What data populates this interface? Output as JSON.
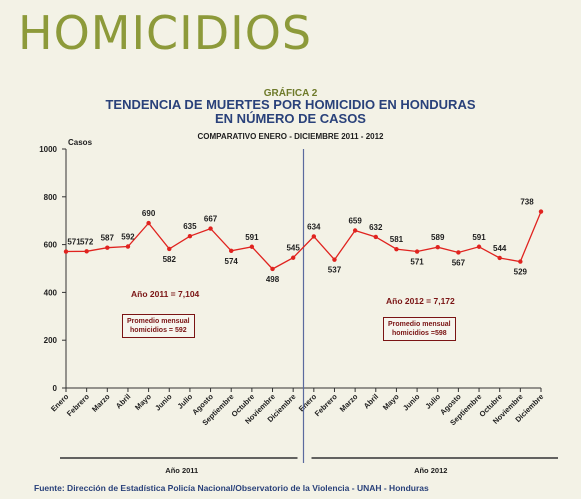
{
  "page": {
    "heading": "HOMICIDIOS",
    "chart_number": "GRÁFICA 2",
    "chart_title_line1": "TENDENCIA DE MUERTES POR HOMICIDIO EN HONDURAS",
    "chart_title_line2": "EN NÚMERO DE CASOS",
    "chart_subtitle": "COMPARATIVO ENERO - DICIEMBRE 2011 - 2012",
    "source": "Fuente: Dirección de Estadística Policía Nacional/Observatorio de la Violencia - UNAH - Honduras"
  },
  "annotations": {
    "total_2011": "Año 2011 = 7,104",
    "total_2012": "Año 2012 = 7,172",
    "avg_2011_line1": "Promedio mensual",
    "avg_2011_line2": "homicidios = 592",
    "avg_2012_line1": "Promedio mensual",
    "avg_2012_line2": "homicidios =598"
  },
  "colors": {
    "line": "#e0231f",
    "heading": "#8d9a3a",
    "title": "#29417a",
    "annotation": "#7a1414",
    "divider": "#5a6a9e"
  },
  "chart_data": {
    "type": "line",
    "ylabel": "Casos",
    "ylim": [
      0,
      1000
    ],
    "yticks": [
      0,
      200,
      400,
      600,
      800,
      1000
    ],
    "categories": [
      "Enero",
      "Febrero",
      "Marzo",
      "Abril",
      "Mayo",
      "Junio",
      "Julio",
      "Agosto",
      "Septiembre",
      "Octubre",
      "Noviembre",
      "Diciembre",
      "Enero",
      "Febrero",
      "Marzo",
      "Abril",
      "Mayo",
      "Junio",
      "Julio",
      "Agosto",
      "Septiembre",
      "Octubre",
      "Noviembre",
      "Diciembre"
    ],
    "groups": [
      {
        "label": "Año 2011",
        "count": 12
      },
      {
        "label": "Año 2012",
        "count": 12
      }
    ],
    "series": [
      {
        "values": [
          571,
          572,
          587,
          592,
          690,
          582,
          635,
          667,
          574,
          591,
          498,
          545,
          634,
          537,
          659,
          632,
          581,
          571,
          589,
          567,
          591,
          544,
          529,
          738
        ]
      }
    ],
    "grid": false
  }
}
